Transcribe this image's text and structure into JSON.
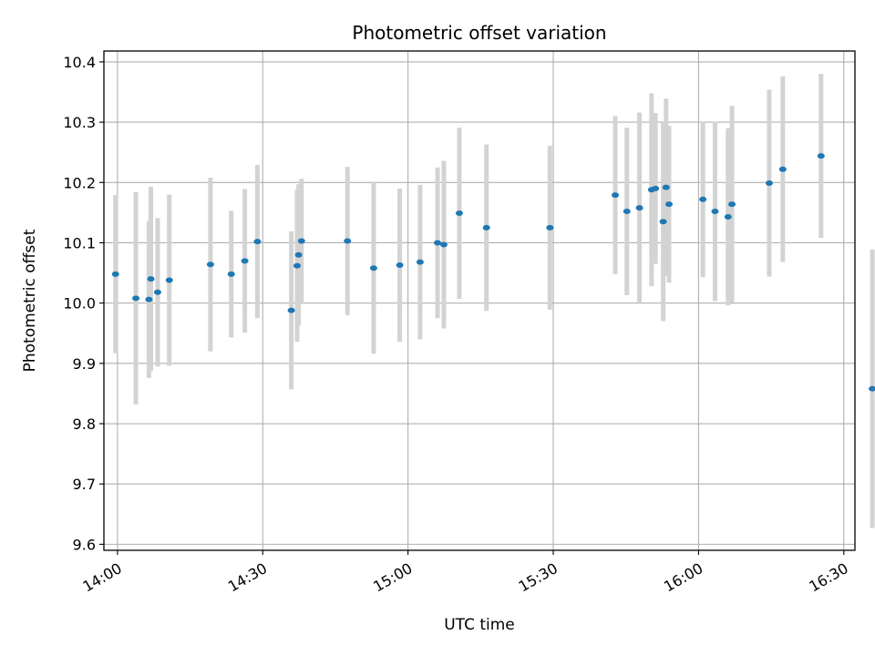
{
  "chart_data": {
    "type": "scatter",
    "title": "Photometric offset variation",
    "xlabel": "UTC time",
    "ylabel": "Photometric offset",
    "grid": true,
    "xlim": [
      837.2,
      992.3
    ],
    "ylim": [
      9.59,
      10.418
    ],
    "x_units": "minutes since 00:00 UTC",
    "xticks": [
      {
        "value": 840,
        "label": "14:00"
      },
      {
        "value": 870,
        "label": "14:30"
      },
      {
        "value": 900,
        "label": "15:00"
      },
      {
        "value": 930,
        "label": "15:30"
      },
      {
        "value": 960,
        "label": "16:00"
      },
      {
        "value": 990,
        "label": "16:30"
      }
    ],
    "yticks": [
      {
        "value": 9.6,
        "label": "9.6"
      },
      {
        "value": 9.7,
        "label": "9.7"
      },
      {
        "value": 9.8,
        "label": "9.8"
      },
      {
        "value": 9.9,
        "label": "9.9"
      },
      {
        "value": 10.0,
        "label": "10.0"
      },
      {
        "value": 10.1,
        "label": "10.1"
      },
      {
        "value": 10.2,
        "label": "10.2"
      },
      {
        "value": 10.3,
        "label": "10.3"
      },
      {
        "value": 10.4,
        "label": "10.4"
      }
    ],
    "marker_color": "#1f77b4",
    "errorbar_color": "#d3d3d3",
    "points": [
      {
        "x": 839.6,
        "y": 10.048,
        "err": 0.131
      },
      {
        "x": 843.8,
        "y": 10.008,
        "err": 0.176
      },
      {
        "x": 846.5,
        "y": 10.006,
        "err": 0.13
      },
      {
        "x": 846.9,
        "y": 10.04,
        "err": 0.153
      },
      {
        "x": 848.3,
        "y": 10.018,
        "err": 0.123
      },
      {
        "x": 850.7,
        "y": 10.038,
        "err": 0.142
      },
      {
        "x": 859.2,
        "y": 10.064,
        "err": 0.144
      },
      {
        "x": 863.5,
        "y": 10.048,
        "err": 0.105
      },
      {
        "x": 866.3,
        "y": 10.07,
        "err": 0.119
      },
      {
        "x": 868.9,
        "y": 10.102,
        "err": 0.127
      },
      {
        "x": 875.9,
        "y": 9.988,
        "err": 0.131
      },
      {
        "x": 877.1,
        "y": 10.062,
        "err": 0.126
      },
      {
        "x": 877.4,
        "y": 10.08,
        "err": 0.117
      },
      {
        "x": 878.0,
        "y": 10.103,
        "err": 0.103
      },
      {
        "x": 887.5,
        "y": 10.103,
        "err": 0.123
      },
      {
        "x": 892.9,
        "y": 10.058,
        "err": 0.142
      },
      {
        "x": 898.3,
        "y": 10.063,
        "err": 0.127
      },
      {
        "x": 902.5,
        "y": 10.068,
        "err": 0.128
      },
      {
        "x": 906.1,
        "y": 10.1,
        "err": 0.125
      },
      {
        "x": 907.4,
        "y": 10.097,
        "err": 0.139
      },
      {
        "x": 910.6,
        "y": 10.149,
        "err": 0.142
      },
      {
        "x": 916.2,
        "y": 10.125,
        "err": 0.138
      },
      {
        "x": 929.3,
        "y": 10.125,
        "err": 0.136
      },
      {
        "x": 942.8,
        "y": 10.179,
        "err": 0.131
      },
      {
        "x": 945.2,
        "y": 10.152,
        "err": 0.139
      },
      {
        "x": 947.8,
        "y": 10.158,
        "err": 0.158
      },
      {
        "x": 950.3,
        "y": 10.188,
        "err": 0.16
      },
      {
        "x": 951.1,
        "y": 10.19,
        "err": 0.125
      },
      {
        "x": 952.7,
        "y": 10.135,
        "err": 0.165
      },
      {
        "x": 953.3,
        "y": 10.192,
        "err": 0.147
      },
      {
        "x": 953.9,
        "y": 10.164,
        "err": 0.13
      },
      {
        "x": 960.9,
        "y": 10.172,
        "err": 0.129
      },
      {
        "x": 963.4,
        "y": 10.152,
        "err": 0.149
      },
      {
        "x": 966.1,
        "y": 10.143,
        "err": 0.147
      },
      {
        "x": 966.9,
        "y": 10.164,
        "err": 0.163
      },
      {
        "x": 974.6,
        "y": 10.199,
        "err": 0.155
      },
      {
        "x": 977.4,
        "y": 10.222,
        "err": 0.154
      },
      {
        "x": 985.3,
        "y": 10.244,
        "err": 0.136
      },
      {
        "x": 995.9,
        "y": 9.858,
        "err": 0.231
      }
    ]
  }
}
